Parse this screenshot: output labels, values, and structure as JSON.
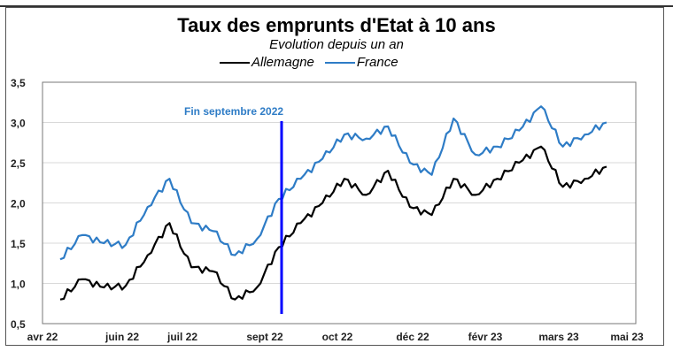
{
  "chart_data": {
    "type": "line",
    "title": "Taux des emprunts d'Etat à 10 ans",
    "subtitle": "Evolution depuis un an",
    "xlabel": "",
    "ylabel": "",
    "ylim": [
      0.5,
      3.5
    ],
    "yticks": [
      "0,5",
      "1,0",
      "1,5",
      "2,0",
      "2,5",
      "3,0",
      "3,5"
    ],
    "xticks": [
      "avr 22",
      "juin 22",
      "juil 22",
      "sept 22",
      "oct 22",
      "déc 22",
      "févr 23",
      "mars 23",
      "mai 23"
    ],
    "grid": true,
    "legend_position": "top",
    "annotation": {
      "text": "Fin septembre 2022",
      "x": "sept 22 (end)",
      "color": "#0000ff"
    },
    "x": [
      "2022-04-01",
      "2022-04-15",
      "2022-05-01",
      "2022-05-15",
      "2022-06-01",
      "2022-06-15",
      "2022-07-01",
      "2022-07-15",
      "2022-08-01",
      "2022-08-15",
      "2022-09-01",
      "2022-09-15",
      "2022-09-30",
      "2022-10-15",
      "2022-11-01",
      "2022-11-15",
      "2022-12-01",
      "2022-12-15",
      "2023-01-01",
      "2023-01-15",
      "2023-02-01",
      "2023-02-15",
      "2023-03-01",
      "2023-03-15",
      "2023-04-01",
      "2023-04-15"
    ],
    "series": [
      {
        "name": "Allemagne",
        "color": "#000000",
        "values": [
          0.8,
          1.05,
          0.95,
          0.97,
          1.35,
          1.75,
          1.2,
          1.15,
          0.8,
          0.95,
          1.45,
          1.75,
          2.0,
          2.3,
          2.1,
          2.4,
          1.95,
          1.85,
          2.3,
          2.1,
          2.3,
          2.5,
          2.7,
          2.2,
          2.3,
          2.45
        ]
      },
      {
        "name": "France",
        "color": "#2e7cc6",
        "values": [
          1.3,
          1.6,
          1.5,
          1.48,
          1.95,
          2.3,
          1.75,
          1.65,
          1.35,
          1.55,
          2.05,
          2.3,
          2.55,
          2.85,
          2.8,
          2.95,
          2.5,
          2.35,
          3.05,
          2.6,
          2.7,
          2.9,
          3.2,
          2.7,
          2.85,
          3.0
        ]
      }
    ]
  },
  "legend": {
    "items": [
      {
        "label": "Allemagne",
        "color": "#000000"
      },
      {
        "label": "France",
        "color": "#2e7cc6"
      }
    ]
  },
  "annotation_label": "Fin septembre 2022"
}
